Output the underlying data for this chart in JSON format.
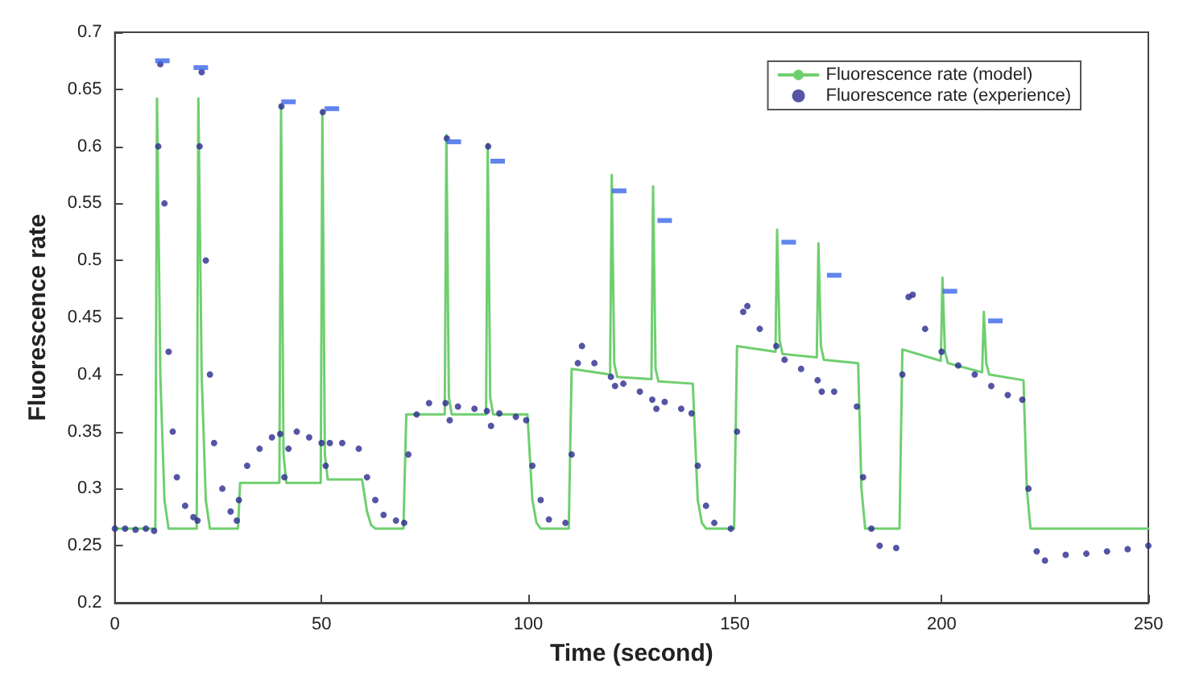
{
  "chart_data": {
    "type": "line",
    "xlabel": "Time (second)",
    "ylabel": "Fluorescence rate",
    "xlim": [
      0,
      250
    ],
    "ylim": [
      0.2,
      0.7
    ],
    "xticks": [
      0,
      50,
      100,
      150,
      200,
      250
    ],
    "yticks": [
      0.2,
      0.25,
      0.3,
      0.35,
      0.4,
      0.45,
      0.5,
      0.55,
      0.6,
      0.65,
      0.7
    ],
    "grid": false,
    "legend": "top right",
    "series": [
      {
        "name": "Fluorescence rate (model)",
        "marker": "none",
        "line_style": "solid",
        "color": "#6fcf6f",
        "x": [
          0,
          9.8,
          10.2,
          11,
          12,
          13,
          19.8,
          20.2,
          21,
          22,
          23,
          29.8,
          30.3,
          39.8,
          40.2,
          40.8,
          41.5,
          49.8,
          50.2,
          50.8,
          51.5,
          59.8,
          61,
          62,
          63,
          69.8,
          70.5,
          79.8,
          80.2,
          80.8,
          81.5,
          89.8,
          90.2,
          90.8,
          91.5,
          99.8,
          101,
          102,
          103,
          109.8,
          110.5,
          119.8,
          120.2,
          120.8,
          121.5,
          129.8,
          130.2,
          130.8,
          131.5,
          139.8,
          141,
          142,
          143,
          149.8,
          150.5,
          159.8,
          160.2,
          160.8,
          161.5,
          169.8,
          170.2,
          170.8,
          171.5,
          179.8,
          180.6,
          181.5,
          189.8,
          190.5,
          199.8,
          200.2,
          200.8,
          201.5,
          209.8,
          210.2,
          210.8,
          211.5,
          219.8,
          220.6,
          221.5,
          250
        ],
        "values": [
          0.265,
          0.265,
          0.642,
          0.4,
          0.29,
          0.265,
          0.265,
          0.642,
          0.4,
          0.29,
          0.265,
          0.265,
          0.305,
          0.305,
          0.636,
          0.33,
          0.305,
          0.305,
          0.63,
          0.33,
          0.308,
          0.308,
          0.28,
          0.268,
          0.265,
          0.265,
          0.365,
          0.365,
          0.61,
          0.38,
          0.365,
          0.365,
          0.602,
          0.38,
          0.365,
          0.365,
          0.29,
          0.27,
          0.265,
          0.265,
          0.405,
          0.4,
          0.575,
          0.41,
          0.398,
          0.396,
          0.565,
          0.405,
          0.394,
          0.392,
          0.29,
          0.27,
          0.265,
          0.265,
          0.425,
          0.42,
          0.527,
          0.43,
          0.418,
          0.415,
          0.515,
          0.425,
          0.413,
          0.41,
          0.3,
          0.265,
          0.265,
          0.422,
          0.412,
          0.485,
          0.42,
          0.41,
          0.402,
          0.455,
          0.41,
          0.4,
          0.395,
          0.3,
          0.265,
          0.265
        ]
      },
      {
        "name": "Fluorescence rate (experience)",
        "type": "scatter",
        "marker": "circle",
        "color": "#2b2b8f",
        "x": [
          0,
          2.5,
          5,
          7.5,
          9.5,
          10.5,
          11,
          12,
          13,
          14,
          15,
          17,
          19,
          20,
          20.5,
          21,
          22,
          23,
          24,
          26,
          28,
          29.5,
          30,
          32,
          35,
          38,
          40,
          40.3,
          41,
          42,
          44,
          47,
          50,
          50.3,
          51,
          52,
          55,
          59,
          61,
          63,
          65,
          68,
          70,
          71,
          73,
          76,
          80,
          80.3,
          81,
          83,
          87,
          90,
          90.3,
          91,
          93,
          97,
          99.5,
          101,
          103,
          105,
          109,
          110.5,
          112,
          113,
          116,
          120,
          121,
          123,
          127,
          130,
          131,
          133,
          137,
          139.5,
          141,
          143,
          145,
          149,
          150.5,
          152,
          153,
          156,
          160,
          162,
          166,
          170,
          171,
          174,
          179.5,
          181,
          183,
          185,
          189,
          190.5,
          192,
          193,
          196,
          200,
          204,
          208,
          212,
          216,
          219.5,
          221,
          223,
          225,
          230,
          235,
          240,
          245,
          250
        ],
        "values": [
          0.265,
          0.265,
          0.264,
          0.265,
          0.263,
          0.6,
          0.672,
          0.55,
          0.42,
          0.35,
          0.31,
          0.285,
          0.275,
          0.272,
          0.6,
          0.665,
          0.5,
          0.4,
          0.34,
          0.3,
          0.28,
          0.272,
          0.29,
          0.32,
          0.335,
          0.345,
          0.348,
          0.635,
          0.31,
          0.335,
          0.35,
          0.345,
          0.34,
          0.63,
          0.32,
          0.34,
          0.34,
          0.335,
          0.31,
          0.29,
          0.277,
          0.272,
          0.27,
          0.33,
          0.365,
          0.375,
          0.375,
          0.607,
          0.36,
          0.372,
          0.37,
          0.368,
          0.6,
          0.355,
          0.366,
          0.363,
          0.36,
          0.32,
          0.29,
          0.273,
          0.27,
          0.33,
          0.41,
          0.425,
          0.41,
          0.398,
          0.39,
          0.392,
          0.385,
          0.378,
          0.37,
          0.376,
          0.37,
          0.366,
          0.32,
          0.285,
          0.27,
          0.265,
          0.35,
          0.455,
          0.46,
          0.44,
          0.425,
          0.413,
          0.405,
          0.395,
          0.385,
          0.385,
          0.372,
          0.31,
          0.265,
          0.25,
          0.248,
          0.4,
          0.468,
          0.47,
          0.44,
          0.42,
          0.408,
          0.4,
          0.39,
          0.382,
          0.378,
          0.3,
          0.245,
          0.237,
          0.242,
          0.243,
          0.245,
          0.247,
          0.25
        ]
      },
      {
        "type": "scatter",
        "marker": "square",
        "color": "#3a66e8",
        "x": [
          11.5,
          20.8,
          42,
          52.5,
          82,
          92.6,
          122,
          133,
          163,
          174,
          202,
          213
        ],
        "values": [
          0.675,
          0.669,
          0.639,
          0.633,
          0.604,
          0.587,
          0.561,
          0.535,
          0.516,
          0.487,
          0.473,
          0.447
        ]
      }
    ]
  }
}
